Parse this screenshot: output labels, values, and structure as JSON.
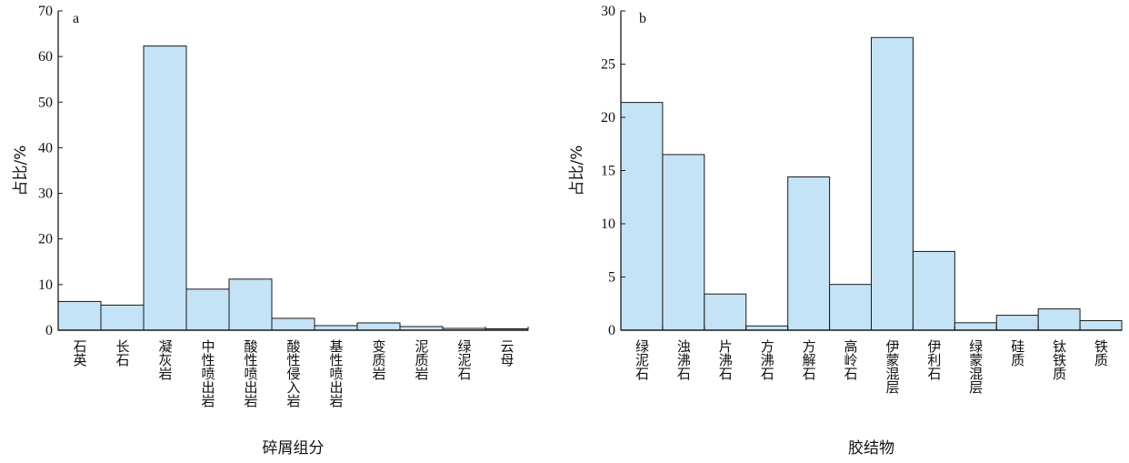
{
  "chart_data": [
    {
      "type": "bar",
      "panel_label": "a",
      "xlabel": "碎屑组分",
      "ylabel": "占比/%",
      "ylim": [
        0,
        70
      ],
      "yticks": [
        "0",
        "10",
        "20",
        "30",
        "40",
        "50",
        "60",
        "70"
      ],
      "categories": [
        "石英",
        "长石",
        "凝灰岩",
        "中性喷出岩",
        "酸性喷出岩",
        "酸性侵入岩",
        "基性喷出岩",
        "变质岩",
        "泥质岩",
        "绿泥石",
        "云母"
      ],
      "values": [
        6.3,
        5.5,
        62.3,
        9.0,
        11.2,
        2.6,
        1.0,
        1.6,
        0.8,
        0.4,
        0.3
      ],
      "bar_color": "#c5e3f7",
      "grid": false
    },
    {
      "type": "bar",
      "panel_label": "b",
      "xlabel": "胶结物",
      "ylabel": "占比/%",
      "ylim": [
        0,
        30
      ],
      "yticks": [
        "0",
        "5",
        "10",
        "15",
        "20",
        "25",
        "30"
      ],
      "categories": [
        "绿泥石",
        "浊沸石",
        "片沸石",
        "方沸石",
        "方解石",
        "高岭石",
        "伊蒙混层",
        "伊利石",
        "绿蒙混层",
        "硅质",
        "钛铁质",
        "铁质"
      ],
      "values": [
        21.4,
        16.5,
        3.4,
        0.4,
        14.4,
        4.3,
        27.5,
        7.4,
        0.7,
        1.4,
        2.0,
        0.9
      ],
      "bar_color": "#c5e3f7",
      "grid": false
    }
  ]
}
